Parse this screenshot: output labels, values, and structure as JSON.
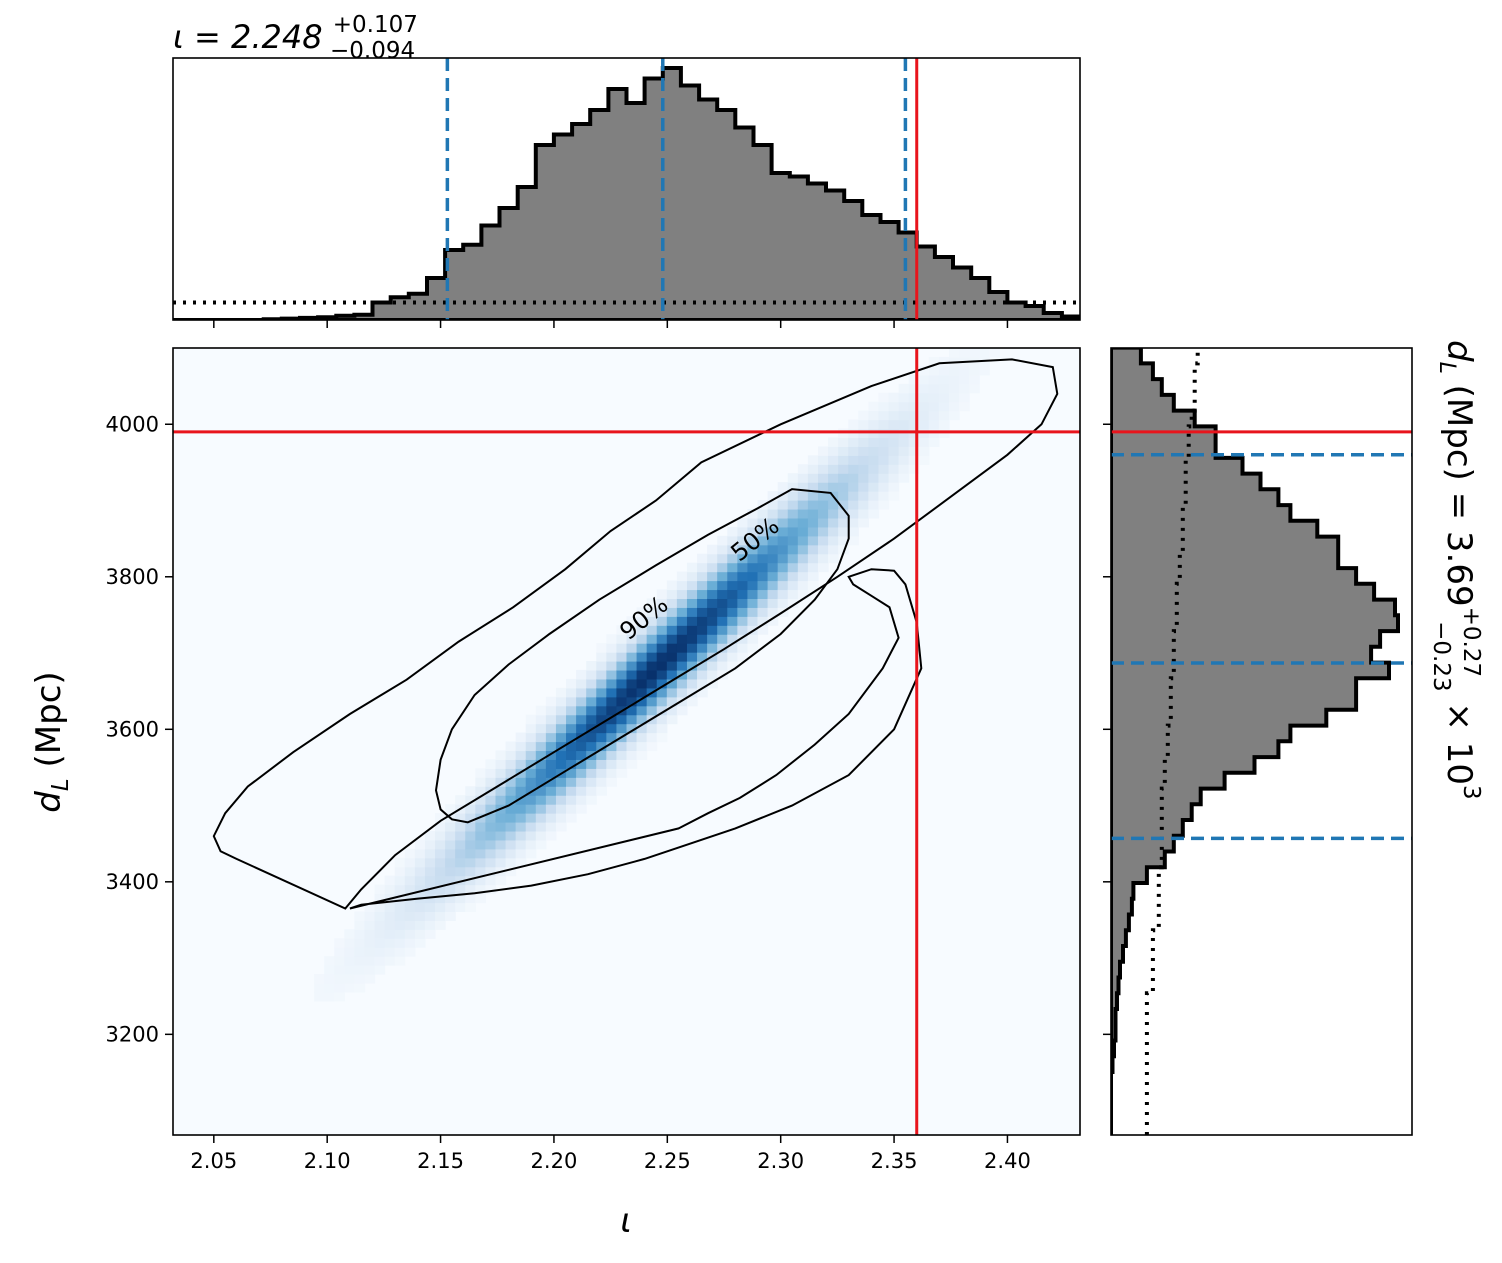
{
  "chart_data": [
    {
      "id": "joint",
      "type": "heatmap",
      "xlabel": "ι",
      "ylabel": "d_L (Mpc)",
      "xlim": [
        2.032,
        2.432
      ],
      "ylim": [
        3068,
        4100
      ],
      "x_ticks": [
        2.05,
        2.1,
        2.15,
        2.2,
        2.25,
        2.3,
        2.35,
        2.4
      ],
      "x_tick_labels": [
        "2.05",
        "2.10",
        "2.15",
        "2.20",
        "2.25",
        "2.30",
        "2.35",
        "2.40"
      ],
      "y_ticks": [
        3200,
        3400,
        3600,
        3800,
        4000
      ],
      "y_tick_labels": [
        "3200",
        "3400",
        "3600",
        "3800",
        "4000"
      ],
      "colormap": "Blues",
      "density": {
        "mean": [
          2.245,
          3680
        ],
        "sd": [
          0.05,
          145
        ],
        "rho": 0.975
      },
      "contours": [
        {
          "level": "90%",
          "points": [
            [
              2.108,
              3365
            ],
            [
              2.115,
              3390
            ],
            [
              2.13,
              3435
            ],
            [
              2.15,
              3480
            ],
            [
              2.175,
              3525
            ],
            [
              2.2,
              3570
            ],
            [
              2.225,
              3615
            ],
            [
              2.25,
              3660
            ],
            [
              2.275,
              3705
            ],
            [
              2.3,
              3752
            ],
            [
              2.325,
              3800
            ],
            [
              2.35,
              3850
            ],
            [
              2.375,
              3905
            ],
            [
              2.4,
              3960
            ],
            [
              2.415,
              4000
            ],
            [
              2.422,
              4040
            ],
            [
              2.42,
              4075
            ],
            [
              2.402,
              4085
            ],
            [
              2.37,
              4080
            ],
            [
              2.34,
              4050
            ],
            [
              2.3,
              4000
            ],
            [
              2.265,
              3950
            ],
            [
              2.245,
              3900
            ],
            [
              2.225,
              3860
            ],
            [
              2.205,
              3810
            ],
            [
              2.182,
              3760
            ],
            [
              2.158,
              3715
            ],
            [
              2.135,
              3665
            ],
            [
              2.11,
              3620
            ],
            [
              2.085,
              3570
            ],
            [
              2.065,
              3525
            ],
            [
              2.055,
              3490
            ],
            [
              2.05,
              3460
            ],
            [
              2.053,
              3440
            ],
            [
              2.06,
              3430
            ]
          ]
        },
        {
          "level": "50%",
          "points": [
            [
              2.162,
              3478
            ],
            [
              2.18,
              3500
            ],
            [
              2.205,
              3545
            ],
            [
              2.23,
              3590
            ],
            [
              2.255,
              3635
            ],
            [
              2.28,
              3680
            ],
            [
              2.3,
              3725
            ],
            [
              2.315,
              3770
            ],
            [
              2.325,
              3810
            ],
            [
              2.33,
              3850
            ],
            [
              2.33,
              3880
            ],
            [
              2.322,
              3910
            ],
            [
              2.305,
              3915
            ],
            [
              2.29,
              3890
            ],
            [
              2.268,
              3855
            ],
            [
              2.245,
              3815
            ],
            [
              2.22,
              3770
            ],
            [
              2.198,
              3725
            ],
            [
              2.18,
              3685
            ],
            [
              2.165,
              3645
            ],
            [
              2.155,
              3600
            ],
            [
              2.15,
              3560
            ],
            [
              2.148,
              3520
            ],
            [
              2.15,
              3495
            ],
            [
              2.155,
              3482
            ]
          ]
        },
        {
          "level": "lobe",
          "points": [
            [
              2.255,
              3470
            ],
            [
              2.268,
              3490
            ],
            [
              2.282,
              3510
            ],
            [
              2.298,
              3540
            ],
            [
              2.315,
              3580
            ],
            [
              2.33,
              3620
            ],
            [
              2.345,
              3680
            ],
            [
              2.352,
              3720
            ],
            [
              2.348,
              3760
            ],
            [
              2.34,
              3775
            ],
            [
              2.332,
              3790
            ],
            [
              2.33,
              3800
            ],
            [
              2.34,
              3810
            ],
            [
              2.35,
              3808
            ],
            [
              2.355,
              3790
            ],
            [
              2.36,
              3740
            ],
            [
              2.362,
              3680
            ],
            [
              2.35,
              3600
            ],
            [
              2.33,
              3540
            ],
            [
              2.305,
              3500
            ],
            [
              2.28,
              3470
            ],
            [
              2.26,
              3450
            ],
            [
              2.24,
              3430
            ],
            [
              2.215,
              3410
            ],
            [
              2.19,
              3395
            ],
            [
              2.165,
              3385
            ],
            [
              2.14,
              3378
            ],
            [
              2.115,
              3370
            ],
            [
              2.11,
              3365
            ]
          ]
        }
      ],
      "contour_labels": [
        {
          "text": "90%",
          "x": 2.24,
          "y": 3745,
          "rotation": -39
        },
        {
          "text": "50%",
          "x": 2.289,
          "y": 3848,
          "rotation": -39
        }
      ],
      "truth": {
        "x": 2.36,
        "y": 3990,
        "color": "#e8141c"
      }
    },
    {
      "id": "top-hist",
      "type": "bar",
      "title_parts": [
        "ι = 2.248",
        "+0.107",
        "−0.094"
      ],
      "xlim": [
        2.032,
        2.432
      ],
      "bin_edges_start": 2.032,
      "bin_width": 0.008,
      "posterior": [
        0,
        0,
        0,
        0,
        0,
        0.002,
        0.004,
        0.006,
        0.008,
        0.012,
        0.015,
        0.05,
        0.065,
        0.075,
        0.12,
        0.2,
        0.215,
        0.27,
        0.32,
        0.38,
        0.5,
        0.53,
        0.56,
        0.6,
        0.66,
        0.62,
        0.69,
        0.72,
        0.67,
        0.63,
        0.6,
        0.55,
        0.5,
        0.42,
        0.41,
        0.39,
        0.37,
        0.34,
        0.3,
        0.28,
        0.25,
        0.21,
        0.18,
        0.15,
        0.12,
        0.08,
        0.05,
        0.04,
        0.02,
        0.01
      ],
      "prior_level": 0.05,
      "quantile_lines": [
        2.153,
        2.248,
        2.355
      ],
      "quantile_color": "#2077b4",
      "truth_x": 2.36
    },
    {
      "id": "right-hist",
      "type": "bar",
      "side_label_parts": [
        "d",
        "L",
        " (Mpc) = 3.69",
        "+0.27",
        "−0.23",
        " × 10",
        "3"
      ],
      "ylim": [
        3068,
        4100
      ],
      "bin_edges_start": 3068,
      "bin_width": 20.65,
      "posterior": [
        0,
        0,
        0,
        0,
        0.005,
        0.01,
        0.015,
        0.015,
        0.02,
        0.025,
        0.03,
        0.04,
        0.05,
        0.06,
        0.07,
        0.075,
        0.12,
        0.18,
        0.21,
        0.24,
        0.27,
        0.3,
        0.38,
        0.48,
        0.56,
        0.6,
        0.72,
        0.82,
        0.82,
        0.93,
        0.87,
        0.9,
        0.96,
        0.95,
        0.88,
        0.82,
        0.76,
        0.76,
        0.69,
        0.6,
        0.56,
        0.5,
        0.44,
        0.35,
        0.35,
        0.28,
        0.21,
        0.17,
        0.14,
        0.1
      ],
      "prior": [
        0.12,
        0.12,
        0.12,
        0.12,
        0.12,
        0.12,
        0.12,
        0.12,
        0.12,
        0.14,
        0.14,
        0.14,
        0.14,
        0.16,
        0.16,
        0.16,
        0.16,
        0.17,
        0.17,
        0.17,
        0.17,
        0.17,
        0.18,
        0.18,
        0.19,
        0.19,
        0.2,
        0.2,
        0.2,
        0.21,
        0.21,
        0.21,
        0.22,
        0.22,
        0.22,
        0.23,
        0.23,
        0.24,
        0.24,
        0.24,
        0.25,
        0.25,
        0.25,
        0.26,
        0.26,
        0.27,
        0.28,
        0.28,
        0.28,
        0.29
      ],
      "quantile_lines": [
        3457,
        3687,
        3960
      ],
      "quantile_color": "#2077b4",
      "truth_y": 3990
    }
  ]
}
